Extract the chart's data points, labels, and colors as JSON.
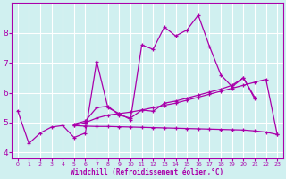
{
  "xlabel": "Windchill (Refroidissement éolien,°C)",
  "background_color": "#d0f0f0",
  "grid_color": "#b0d8d8",
  "line_color": "#aa00aa",
  "xlim": [
    -0.5,
    23.5
  ],
  "ylim": [
    3.8,
    9.0
  ],
  "xticks": [
    0,
    1,
    2,
    3,
    4,
    5,
    6,
    7,
    8,
    9,
    10,
    11,
    12,
    13,
    14,
    15,
    16,
    17,
    18,
    19,
    20,
    21,
    22,
    23
  ],
  "yticks": [
    4,
    5,
    6,
    7,
    8
  ],
  "series": [
    {
      "x": [
        0,
        1,
        2,
        3,
        4,
        5,
        6,
        7,
        8,
        9,
        10,
        11,
        12,
        13,
        14,
        15,
        16,
        17,
        18,
        19,
        20,
        21
      ],
      "y": [
        5.4,
        4.3,
        4.65,
        4.85,
        4.9,
        4.5,
        4.65,
        7.05,
        5.5,
        5.3,
        5.1,
        7.6,
        7.45,
        8.2,
        7.9,
        8.1,
        8.6,
        7.55,
        6.6,
        6.2,
        6.5,
        5.8
      ]
    },
    {
      "x": [
        5,
        6,
        7,
        8,
        9,
        10,
        11,
        12,
        13,
        14,
        15,
        16,
        17,
        18,
        19,
        20,
        21,
        22,
        23
      ],
      "y": [
        4.9,
        5.0,
        5.15,
        5.25,
        5.3,
        5.35,
        5.42,
        5.5,
        5.58,
        5.65,
        5.75,
        5.85,
        5.95,
        6.05,
        6.15,
        6.25,
        6.35,
        6.45,
        4.6
      ]
    },
    {
      "x": [
        5,
        6,
        7,
        8,
        9,
        10,
        11,
        12,
        13,
        14,
        15,
        16,
        17,
        18,
        19,
        20,
        21,
        22,
        23
      ],
      "y": [
        4.9,
        4.88,
        4.87,
        4.87,
        4.86,
        4.85,
        4.84,
        4.83,
        4.82,
        4.81,
        4.8,
        4.79,
        4.78,
        4.77,
        4.76,
        4.75,
        4.72,
        4.68,
        4.6
      ]
    },
    {
      "x": [
        5,
        6,
        7,
        8,
        9,
        10,
        11,
        12,
        13,
        14,
        15,
        16,
        17,
        18,
        19,
        20,
        21
      ],
      "y": [
        4.95,
        5.05,
        5.5,
        5.55,
        5.25,
        5.15,
        5.42,
        5.38,
        5.65,
        5.72,
        5.82,
        5.92,
        6.02,
        6.12,
        6.25,
        6.5,
        5.85
      ]
    }
  ]
}
